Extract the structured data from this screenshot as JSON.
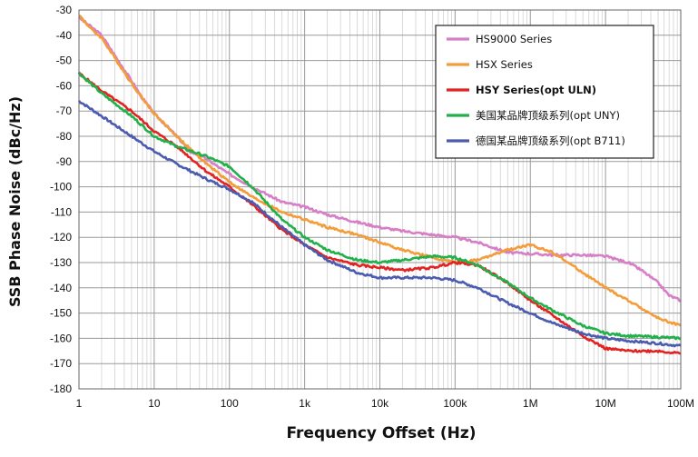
{
  "chart_data": {
    "type": "line",
    "x_scale": "log",
    "xlabel": "Frequency Offset (Hz)",
    "ylabel": "SSB Phase Noise (dBc/Hz)",
    "xlim": [
      1,
      100000000
    ],
    "ylim": [
      -180,
      -30
    ],
    "y_ticks": [
      -30,
      -40,
      -50,
      -60,
      -70,
      -80,
      -90,
      -100,
      -110,
      -120,
      -130,
      -140,
      -150,
      -160,
      -170,
      -180
    ],
    "x_ticks": [
      {
        "value": 1,
        "label": "1"
      },
      {
        "value": 10,
        "label": "10"
      },
      {
        "value": 100,
        "label": "100"
      },
      {
        "value": 1000,
        "label": "1k"
      },
      {
        "value": 10000,
        "label": "10k"
      },
      {
        "value": 100000,
        "label": "100k"
      },
      {
        "value": 1000000,
        "label": "1M"
      },
      {
        "value": 10000000,
        "label": "10M"
      },
      {
        "value": 100000000,
        "label": "100M"
      }
    ],
    "grid": true,
    "legend_position": "top-right",
    "series": [
      {
        "name": "HS9000 Series",
        "color": "#d77fc6",
        "bold": false,
        "x": [
          1,
          1.5,
          2,
          3,
          5,
          7,
          10,
          20,
          30,
          50,
          70,
          100,
          200,
          500,
          1000,
          2000,
          5000,
          10000,
          20000,
          50000,
          100000,
          200000,
          500000,
          1000000,
          2000000,
          5000000,
          10000000,
          20000000,
          30000000,
          50000000,
          70000000,
          100000000
        ],
        "y": [
          -33,
          -37,
          -40,
          -48,
          -58,
          -65,
          -71,
          -80,
          -86,
          -89,
          -92,
          -95,
          -100,
          -106,
          -108,
          -111,
          -114,
          -116,
          -117.5,
          -119,
          -120,
          -122,
          -126,
          -126.5,
          -127,
          -127,
          -127.5,
          -130,
          -133,
          -138,
          -143,
          -145
        ]
      },
      {
        "name": "HSX Series",
        "color": "#f39c3a",
        "bold": false,
        "x": [
          1,
          1.5,
          2,
          3,
          5,
          7,
          10,
          20,
          30,
          50,
          100,
          200,
          500,
          1000,
          2000,
          5000,
          10000,
          20000,
          50000,
          100000,
          200000,
          500000,
          1000000,
          2000000,
          5000000,
          10000000,
          20000000,
          50000000,
          100000000
        ],
        "y": [
          -32,
          -38,
          -41,
          -49,
          -59,
          -65,
          -71,
          -80,
          -85,
          -91,
          -98,
          -104,
          -110,
          -113,
          -116,
          -119,
          -122,
          -125,
          -128,
          -130,
          -129,
          -125,
          -123,
          -126,
          -134,
          -140,
          -145,
          -152,
          -155
        ]
      },
      {
        "name": "HSY Series(opt ULN)",
        "color": "#e32222",
        "bold": true,
        "x": [
          1,
          2,
          5,
          10,
          20,
          50,
          100,
          200,
          500,
          1000,
          2000,
          5000,
          10000,
          20000,
          50000,
          100000,
          200000,
          500000,
          1000000,
          2000000,
          5000000,
          10000000,
          20000000,
          50000000,
          100000000
        ],
        "y": [
          -55,
          -62,
          -70,
          -78,
          -84,
          -94,
          -100,
          -107,
          -117,
          -123,
          -128,
          -131,
          -132,
          -133,
          -132,
          -130,
          -131,
          -138,
          -145,
          -151,
          -159,
          -164,
          -165,
          -165,
          -166
        ]
      },
      {
        "name": "美国某品牌顶级系列(opt UNY)",
        "color": "#22b04a",
        "bold": false,
        "x": [
          1,
          2,
          5,
          10,
          20,
          50,
          100,
          200,
          500,
          1000,
          2000,
          5000,
          10000,
          20000,
          50000,
          100000,
          200000,
          500000,
          1000000,
          2000000,
          5000000,
          10000000,
          20000000,
          50000000,
          100000000
        ],
        "y": [
          -55,
          -63,
          -72,
          -80,
          -84,
          -88,
          -92,
          -100,
          -113,
          -120,
          -125,
          -129,
          -130,
          -129,
          -127.5,
          -128,
          -131,
          -138,
          -144,
          -149,
          -155,
          -158,
          -159,
          -159.5,
          -160
        ]
      },
      {
        "name": "德国某品牌顶级系列(opt B711)",
        "color": "#4a5bb0",
        "bold": false,
        "x": [
          1,
          2,
          5,
          10,
          20,
          50,
          100,
          200,
          500,
          1000,
          2000,
          5000,
          10000,
          20000,
          50000,
          100000,
          200000,
          500000,
          1000000,
          2000000,
          5000000,
          10000000,
          20000000,
          50000000,
          100000000
        ],
        "y": [
          -66,
          -72,
          -80,
          -86,
          -91,
          -97,
          -101,
          -106,
          -116,
          -123,
          -129,
          -134,
          -136,
          -136,
          -136,
          -137,
          -140,
          -146,
          -150,
          -154,
          -158,
          -160,
          -161,
          -162,
          -163
        ]
      }
    ]
  }
}
